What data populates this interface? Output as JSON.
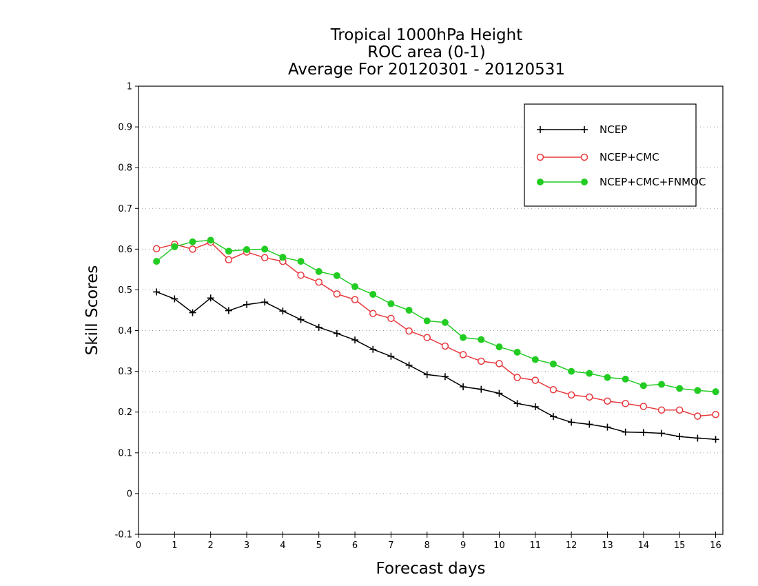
{
  "chart_data": {
    "type": "line",
    "title": [
      "Tropical 1000hPa Height",
      "ROC area (0-1)",
      "Average For 20120301 - 20120531"
    ],
    "xlabel": "Forecast days",
    "ylabel": "Skill Scores",
    "xlim": [
      0,
      16.2
    ],
    "ylim": [
      -0.1,
      1
    ],
    "x_ticks": [
      0,
      1,
      2,
      3,
      4,
      5,
      6,
      7,
      8,
      9,
      10,
      11,
      12,
      13,
      14,
      15,
      16
    ],
    "y_ticks": [
      -0.1,
      0,
      0.1,
      0.2,
      0.3,
      0.4,
      0.5,
      0.6,
      0.7,
      0.8,
      0.9,
      1
    ],
    "y_tick_labels": [
      "-0.1",
      "0",
      "0.1",
      "0.2",
      "0.3",
      "0.4",
      "0.5",
      "0.6",
      "0.7",
      "0.8",
      "0.9",
      "1"
    ],
    "grid": true,
    "legend_position": "top-right",
    "x": [
      0.5,
      1.0,
      1.5,
      2.0,
      2.5,
      3.0,
      3.5,
      4.0,
      4.5,
      5.0,
      5.5,
      6.0,
      6.5,
      7.0,
      7.5,
      8.0,
      8.5,
      9.0,
      9.5,
      10.0,
      10.5,
      11.0,
      11.5,
      12.0,
      12.5,
      13.0,
      13.5,
      14.0,
      14.5,
      15.0,
      15.5,
      16.0
    ],
    "series": [
      {
        "name": "NCEP",
        "color": "#000000",
        "marker": "plus",
        "values": [
          0.495,
          0.478,
          0.444,
          0.48,
          0.449,
          0.464,
          0.47,
          0.448,
          0.427,
          0.408,
          0.393,
          0.377,
          0.354,
          0.337,
          0.315,
          0.292,
          0.287,
          0.262,
          0.256,
          0.246,
          0.221,
          0.213,
          0.189,
          0.175,
          0.17,
          0.163,
          0.151,
          0.15,
          0.148,
          0.14,
          0.136,
          0.133
        ]
      },
      {
        "name": "NCEP+CMC",
        "color": "#e8383d",
        "marker": "open-circle",
        "values": [
          0.601,
          0.612,
          0.6,
          0.617,
          0.574,
          0.593,
          0.579,
          0.57,
          0.536,
          0.519,
          0.49,
          0.476,
          0.442,
          0.43,
          0.399,
          0.383,
          0.362,
          0.341,
          0.325,
          0.319,
          0.285,
          0.278,
          0.255,
          0.242,
          0.237,
          0.227,
          0.221,
          0.214,
          0.205,
          0.205,
          0.19,
          0.194
        ]
      },
      {
        "name": "NCEP+CMC+FNMOC",
        "color": "#22cc22",
        "marker": "filled-circle",
        "values": [
          0.57,
          0.606,
          0.618,
          0.622,
          0.595,
          0.599,
          0.6,
          0.58,
          0.57,
          0.545,
          0.535,
          0.508,
          0.489,
          0.466,
          0.45,
          0.424,
          0.42,
          0.383,
          0.378,
          0.36,
          0.347,
          0.329,
          0.318,
          0.3,
          0.295,
          0.285,
          0.281,
          0.265,
          0.268,
          0.258,
          0.253,
          0.25
        ]
      }
    ]
  }
}
